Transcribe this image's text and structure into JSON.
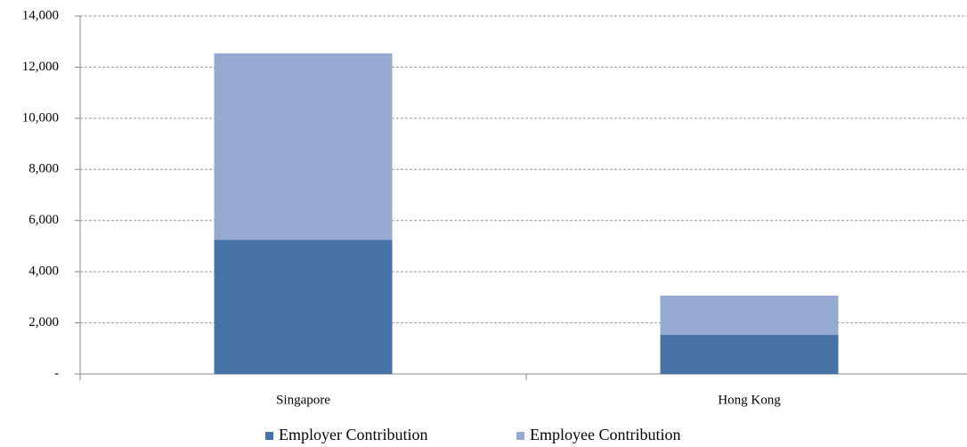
{
  "chart_data": {
    "type": "stacked_bar",
    "categories": [
      "Singapore",
      "Hong Kong"
    ],
    "series": [
      {
        "name": "Employer Contribution",
        "color": "#4672a6",
        "values": [
          5250,
          1530
        ]
      },
      {
        "name": "Employee Contribution",
        "color": "#95a9d1",
        "values": [
          7290,
          1535
        ]
      }
    ],
    "ylim": [
      0,
      14000
    ],
    "yticks": [
      {
        "value": 0,
        "label": "-"
      },
      {
        "value": 2000,
        "label": "2,000"
      },
      {
        "value": 4000,
        "label": "4,000"
      },
      {
        "value": 6000,
        "label": "6,000"
      },
      {
        "value": 8000,
        "label": "8,000"
      },
      {
        "value": 10000,
        "label": "10,000"
      },
      {
        "value": 12000,
        "label": "12,000"
      },
      {
        "value": 14000,
        "label": "14,000"
      }
    ],
    "grid": true,
    "legend": "bottom"
  }
}
